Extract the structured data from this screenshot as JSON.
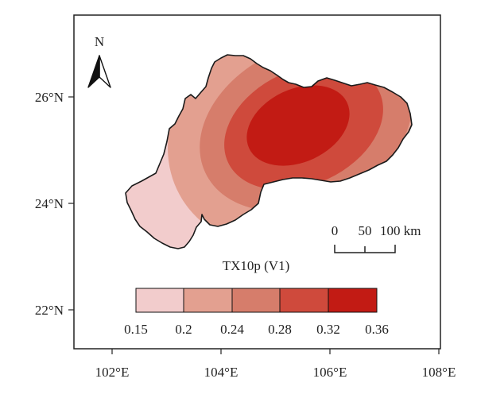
{
  "map": {
    "title": "TX10p (V1)",
    "north_label": "N",
    "x_ticks": [
      "102°E",
      "104°E",
      "106°E",
      "108°E"
    ],
    "y_ticks": [
      "26°N",
      "24°N",
      "22°N"
    ],
    "scale_bar": {
      "labels": [
        "0",
        "50",
        "100 km"
      ]
    },
    "legend": {
      "breaks": [
        "0.15",
        "0.2",
        "0.24",
        "0.28",
        "0.32",
        "0.36"
      ],
      "colors": [
        "#f2cccc",
        "#e3a090",
        "#d67d6b",
        "#cf4a3c",
        "#c21b14"
      ]
    },
    "zone_colors": [
      "#f2cccc",
      "#e3a090",
      "#d67d6b",
      "#cf4a3c",
      "#c21b14"
    ],
    "frame_color": "#222222"
  }
}
